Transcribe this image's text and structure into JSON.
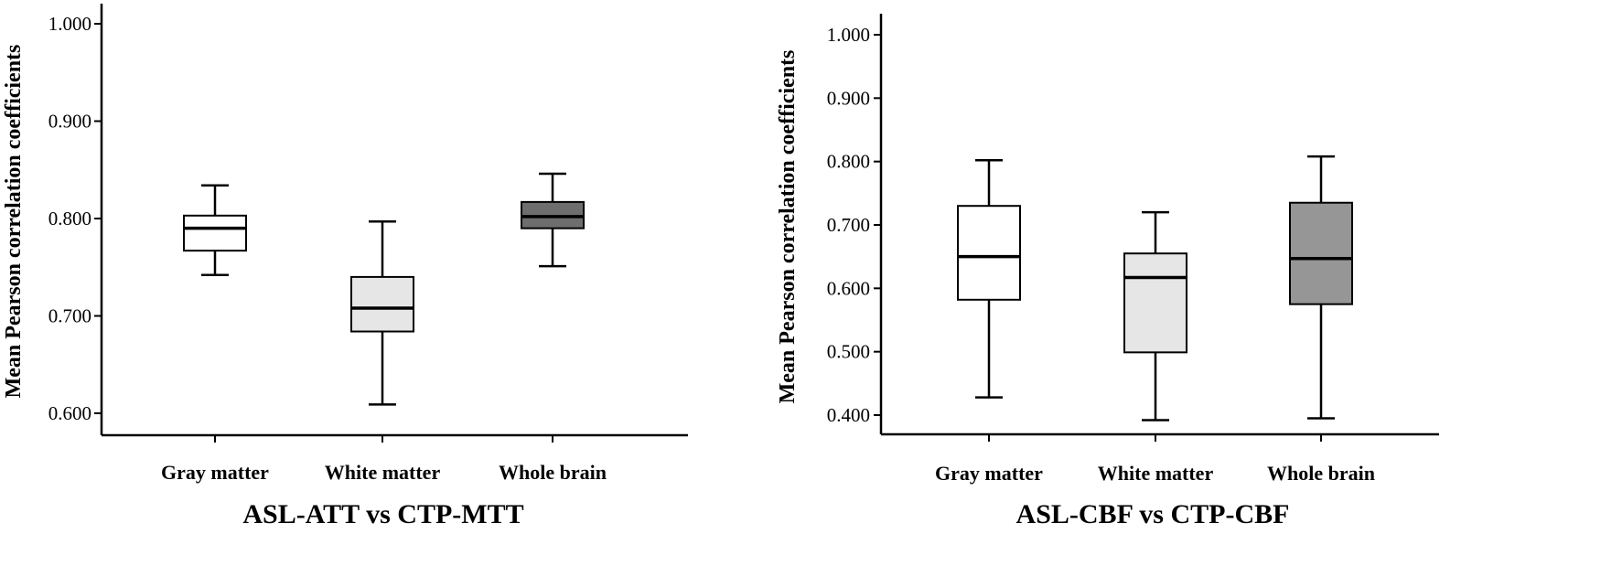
{
  "chart_data": [
    {
      "type": "box",
      "title": "ASL-ATT vs CTP-MTT",
      "ylabel": "Mean Pearson correlation coefficients",
      "xlabel": "ASL-ATT vs CTP-MTT",
      "ylim": [
        0.6,
        1.0
      ],
      "yticks": [
        "0.600",
        "0.700",
        "0.800",
        "0.900",
        "1.000"
      ],
      "categories": [
        "Gray matter",
        "White matter",
        "Whole brain"
      ],
      "boxes": [
        {
          "category": "Gray matter",
          "min": 0.742,
          "q1": 0.767,
          "median": 0.79,
          "q3": 0.803,
          "max": 0.834,
          "color": "#ffffff"
        },
        {
          "category": "White matter",
          "min": 0.609,
          "q1": 0.684,
          "median": 0.708,
          "q3": 0.74,
          "max": 0.797,
          "color": "#e6e6e6"
        },
        {
          "category": "Whole brain",
          "min": 0.751,
          "q1": 0.79,
          "median": 0.802,
          "q3": 0.817,
          "max": 0.846,
          "color": "#6e6e6e"
        }
      ]
    },
    {
      "type": "box",
      "title": "ASL-CBF vs CTP-CBF",
      "ylabel": "Mean Pearson correlation coefficients",
      "xlabel": "ASL-CBF vs CTP-CBF",
      "ylim": [
        0.4,
        1.0
      ],
      "yticks": [
        "0.400",
        "0.500",
        "0.600",
        "0.700",
        "0.800",
        "0.900",
        "1.000"
      ],
      "categories": [
        "Gray matter",
        "White matter",
        "Whole brain"
      ],
      "boxes": [
        {
          "category": "Gray matter",
          "min": 0.428,
          "q1": 0.582,
          "median": 0.65,
          "q3": 0.73,
          "max": 0.802,
          "color": "#ffffff"
        },
        {
          "category": "White matter",
          "min": 0.392,
          "q1": 0.499,
          "median": 0.617,
          "q3": 0.655,
          "max": 0.72,
          "color": "#e6e6e6"
        },
        {
          "category": "Whole brain",
          "min": 0.395,
          "q1": 0.575,
          "median": 0.647,
          "q3": 0.735,
          "max": 0.808,
          "color": "#969696"
        }
      ]
    }
  ]
}
